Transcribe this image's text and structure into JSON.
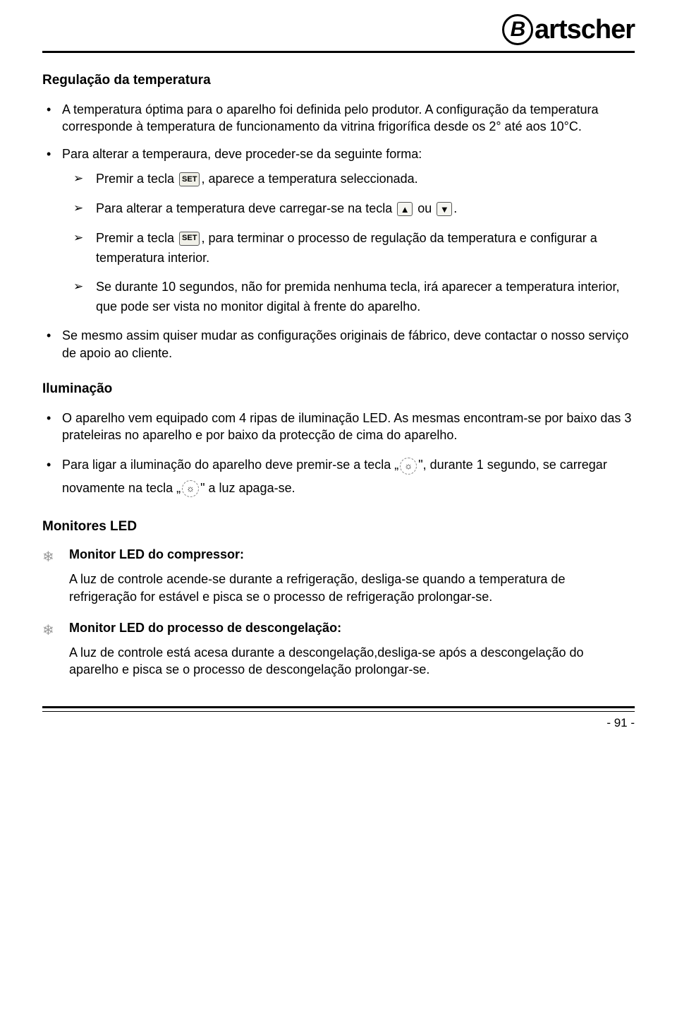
{
  "logo": {
    "b": "B",
    "rest": "artscher"
  },
  "section1": {
    "title": "Regulação da temperatura",
    "b1": "A temperatura óptima para o aparelho foi definida pelo produtor. A configuração da temperatura corresponde à temperatura de funcionamento da vitrina frigorífica desde os 2° até aos 10°C.",
    "b2": "Para alterar a temperaura, deve proceder-se da seguinte forma:",
    "a1_pre": "Premir a tecla ",
    "a1_post": ", aparece a temperatura seleccionada.",
    "a2_pre": "Para alterar a temperatura deve carregar-se na tecla ",
    "a2_mid": " ou ",
    "a2_post": ".",
    "a3_pre": "Premir a tecla ",
    "a3_post": ", para terminar o processo de regulação da temperatura e configurar a temperatura interior.",
    "a4": "Se durante 10 segundos, não for premida nenhuma tecla, irá aparecer a temperatura interior, que pode ser vista no monitor digital à frente do aparelho.",
    "b3": "Se mesmo assim quiser mudar as configurações originais de fábrico, deve contactar o nosso serviço de apoio ao cliente."
  },
  "section2": {
    "title": "Iluminação",
    "b1": "O aparelho vem equipado com 4 ripas de iluminação LED. As mesmas encontram-se por baixo das 3 prateleiras no aparelho e por baixo da protecção de cima do aparelho.",
    "b2_p1": "Para ligar a iluminação do aparelho deve premir-se a tecla „",
    "b2_p2": "\", durante 1 segundo, se carregar novamente na tecla „",
    "b2_p3": "\" a luz apaga-se."
  },
  "section3": {
    "title": "Monitores LED",
    "m1_title": "Monitor LED do compressor:",
    "m1_desc": "A luz de controle acende-se durante a refrigeração, desliga-se quando a temperatura de refrigeração for estável e pisca se o processo de refrigeração prolongar-se.",
    "m2_title": "Monitor LED do processo de descongelação:",
    "m2_desc": "A luz de controle está acesa durante a descongelação,desliga-se após a descongelação do aparelho e pisca se o processo de descongelação prolongar-se."
  },
  "icons": {
    "set": "SET",
    "up": "▲",
    "down": "▼",
    "light": "☼",
    "snow": "❄"
  },
  "page": "- 91 -"
}
